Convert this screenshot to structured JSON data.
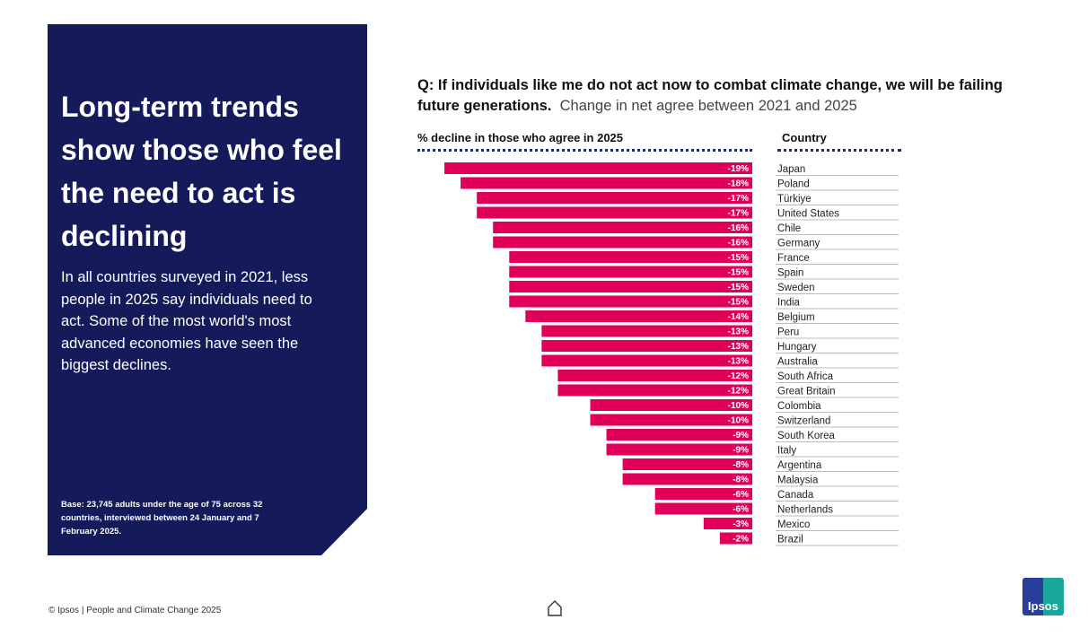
{
  "panel": {
    "headline": "Long-term trends show those who feel the need to act is declining",
    "body": "In all countries surveyed in 2021, less people in 2025 say individuals need to act. Some of the most world's most advanced economies have seen the biggest declines.",
    "base": "Base: 23,745 adults under the age of 75 across 32 countries, interviewed between 24 January and 7 February 2025."
  },
  "question": {
    "bold": "Q: If individuals like me do not act now to combat climate change, we will be failing future generations.",
    "sub": "Change in net agree between 2021 and 2025"
  },
  "footer": "© Ipsos | People and Climate Change 2025",
  "logo": "Ipsos",
  "colors": {
    "bar": "#e0005a",
    "panel": "#141a5a"
  },
  "chart_data": {
    "type": "bar",
    "orientation": "horizontal",
    "value_header": "% decline in those who agree in 2025",
    "category_header": "Country",
    "categories": [
      "Japan",
      "Poland",
      "Türkiye",
      "United States",
      "Chile",
      "Germany",
      "France",
      "Spain",
      "Sweden",
      "India",
      "Belgium",
      "Peru",
      "Hungary",
      "Australia",
      "South Africa",
      "Great Britain",
      "Colombia",
      "Switzerland",
      "South Korea",
      "Italy",
      "Argentina",
      "Malaysia",
      "Canada",
      "Netherlands",
      "Mexico",
      "Brazil"
    ],
    "values": [
      -19,
      -18,
      -17,
      -17,
      -16,
      -16,
      -15,
      -15,
      -15,
      -15,
      -14,
      -13,
      -13,
      -13,
      -12,
      -12,
      -10,
      -10,
      -9,
      -9,
      -8,
      -8,
      -6,
      -6,
      -3,
      -2
    ],
    "labels": [
      "-19%",
      "-18%",
      "-17%",
      "-17%",
      "-16%",
      "-16%",
      "-15%",
      "-15%",
      "-15%",
      "-15%",
      "-14%",
      "-13%",
      "-13%",
      "-13%",
      "-12%",
      "-12%",
      "-10%",
      "-10%",
      "-9%",
      "-9%",
      "-8%",
      "-8%",
      "-6%",
      "-6%",
      "-3%",
      "-2%"
    ]
  }
}
